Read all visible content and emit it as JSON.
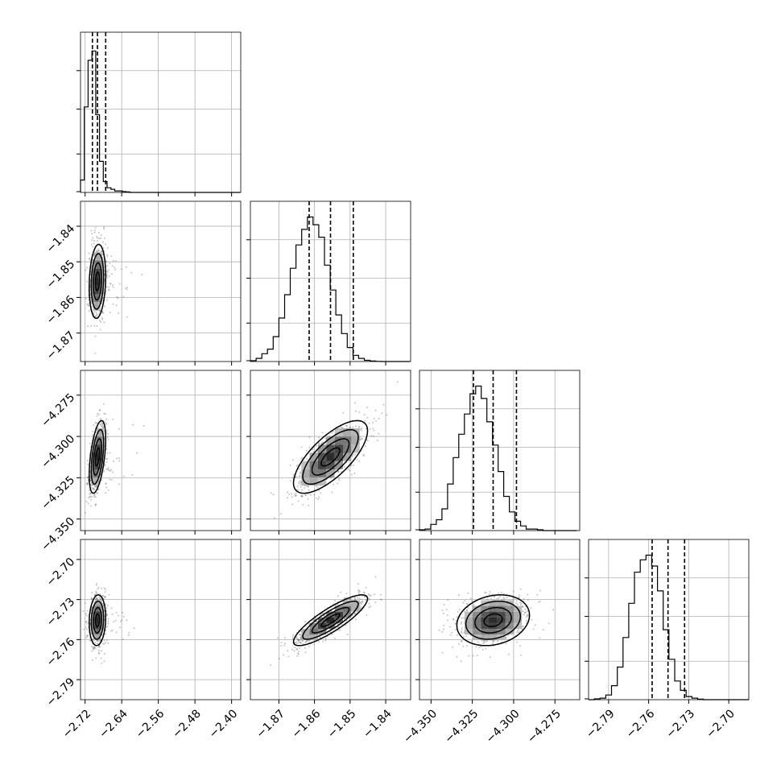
{
  "chart_data": {
    "type": "corner",
    "title": "",
    "parameters": [
      {
        "range": [
          -2.73,
          -2.38
        ],
        "ticks": [
          -2.72,
          -2.64,
          -2.56,
          -2.48,
          -2.4
        ],
        "tick_labels": [
          "−2.72",
          "−2.64",
          "−2.56",
          "−2.48",
          "−2.40"
        ],
        "quantiles": [
          -2.704,
          -2.693,
          -2.675
        ]
      },
      {
        "range": [
          -1.878,
          -1.833
        ],
        "ticks": [
          -1.87,
          -1.86,
          -1.85,
          -1.84
        ],
        "tick_labels": [
          "−1.87",
          "−1.86",
          "−1.85",
          "−1.84"
        ],
        "quantiles": [
          -1.8615,
          -1.8555,
          -1.8491
        ]
      },
      {
        "range": [
          -4.357,
          -4.26
        ],
        "ticks": [
          -4.35,
          -4.325,
          -4.3,
          -4.275
        ],
        "tick_labels": [
          "−4.350",
          "−4.325",
          "−4.300",
          "−4.275"
        ],
        "quantiles": [
          -4.3243,
          -4.3124,
          -4.2983
        ]
      },
      {
        "range": [
          -2.805,
          -2.685
        ],
        "ticks": [
          -2.79,
          -2.76,
          -2.73,
          -2.7
        ],
        "tick_labels": [
          "−2.79",
          "−2.76",
          "−2.73",
          "−2.70"
        ],
        "quantiles": [
          -2.7574,
          -2.7455,
          -2.7331
        ]
      }
    ],
    "histograms": [
      {
        "edges_start": -2.73,
        "bin_width": 0.0083,
        "counts": [
          0.08,
          0.55,
          0.85,
          0.91,
          0.5,
          0.2,
          0.07,
          0.03,
          0.02,
          0.01,
          0.01,
          0.005,
          0.003,
          0,
          0,
          0,
          0,
          0,
          0,
          0,
          0,
          0,
          0,
          0,
          0,
          0,
          0,
          0,
          0,
          0,
          0,
          0,
          0,
          0,
          0,
          0,
          0,
          0,
          0,
          0,
          0,
          0
        ]
      },
      {
        "edges_start": -1.878,
        "bin_width": 0.0016,
        "counts": [
          0.005,
          0.02,
          0.05,
          0.08,
          0.16,
          0.28,
          0.43,
          0.6,
          0.75,
          0.85,
          0.93,
          0.88,
          0.8,
          0.62,
          0.46,
          0.3,
          0.18,
          0.09,
          0.04,
          0.02,
          0.008,
          0.003,
          0.001,
          0,
          0,
          0,
          0,
          0
        ]
      },
      {
        "edges_start": -4.357,
        "bin_width": 0.0034,
        "counts": [
          0.005,
          0.01,
          0.04,
          0.07,
          0.14,
          0.3,
          0.47,
          0.62,
          0.75,
          0.88,
          0.93,
          0.85,
          0.7,
          0.55,
          0.38,
          0.22,
          0.12,
          0.06,
          0.03,
          0.01,
          0.01,
          0.005,
          0,
          0,
          0,
          0,
          0,
          0
        ]
      },
      {
        "edges_start": -2.805,
        "bin_width": 0.0043,
        "counts": [
          0,
          0.005,
          0.01,
          0.03,
          0.09,
          0.21,
          0.4,
          0.62,
          0.82,
          0.9,
          0.93,
          0.86,
          0.7,
          0.45,
          0.26,
          0.12,
          0.06,
          0.02,
          0.01,
          0.003,
          0,
          0,
          0,
          0,
          0,
          0,
          0,
          0
        ]
      }
    ],
    "pairs": [
      {
        "x": 0,
        "y": 1,
        "center": [
          -2.693,
          -1.8555
        ],
        "sd": [
          0.009,
          0.0052
        ],
        "corr": 0.15
      },
      {
        "x": 0,
        "y": 2,
        "center": [
          -2.693,
          -4.3124
        ],
        "sd": [
          0.009,
          0.011
        ],
        "corr": 0.5
      },
      {
        "x": 1,
        "y": 2,
        "center": [
          -1.8555,
          -4.3124
        ],
        "sd": [
          0.0052,
          0.011
        ],
        "corr": 0.72
      },
      {
        "x": 0,
        "y": 3,
        "center": [
          -2.693,
          -2.7455
        ],
        "sd": [
          0.009,
          0.0095
        ],
        "corr": 0.1
      },
      {
        "x": 1,
        "y": 3,
        "center": [
          -1.8555,
          -2.7455
        ],
        "sd": [
          0.0052,
          0.0095
        ],
        "corr": 0.85
      },
      {
        "x": 2,
        "y": 3,
        "center": [
          -4.3124,
          -2.7455
        ],
        "sd": [
          0.011,
          0.0095
        ],
        "corr": 0.2
      }
    ],
    "contour_levels_sigma": [
      0.5,
      1.0,
      1.5,
      2.0
    ],
    "grid": true,
    "colors": {
      "contour": "#000000",
      "points": "#555555",
      "gridline": "#b0b0b0",
      "quantile_line": "#000000"
    }
  }
}
